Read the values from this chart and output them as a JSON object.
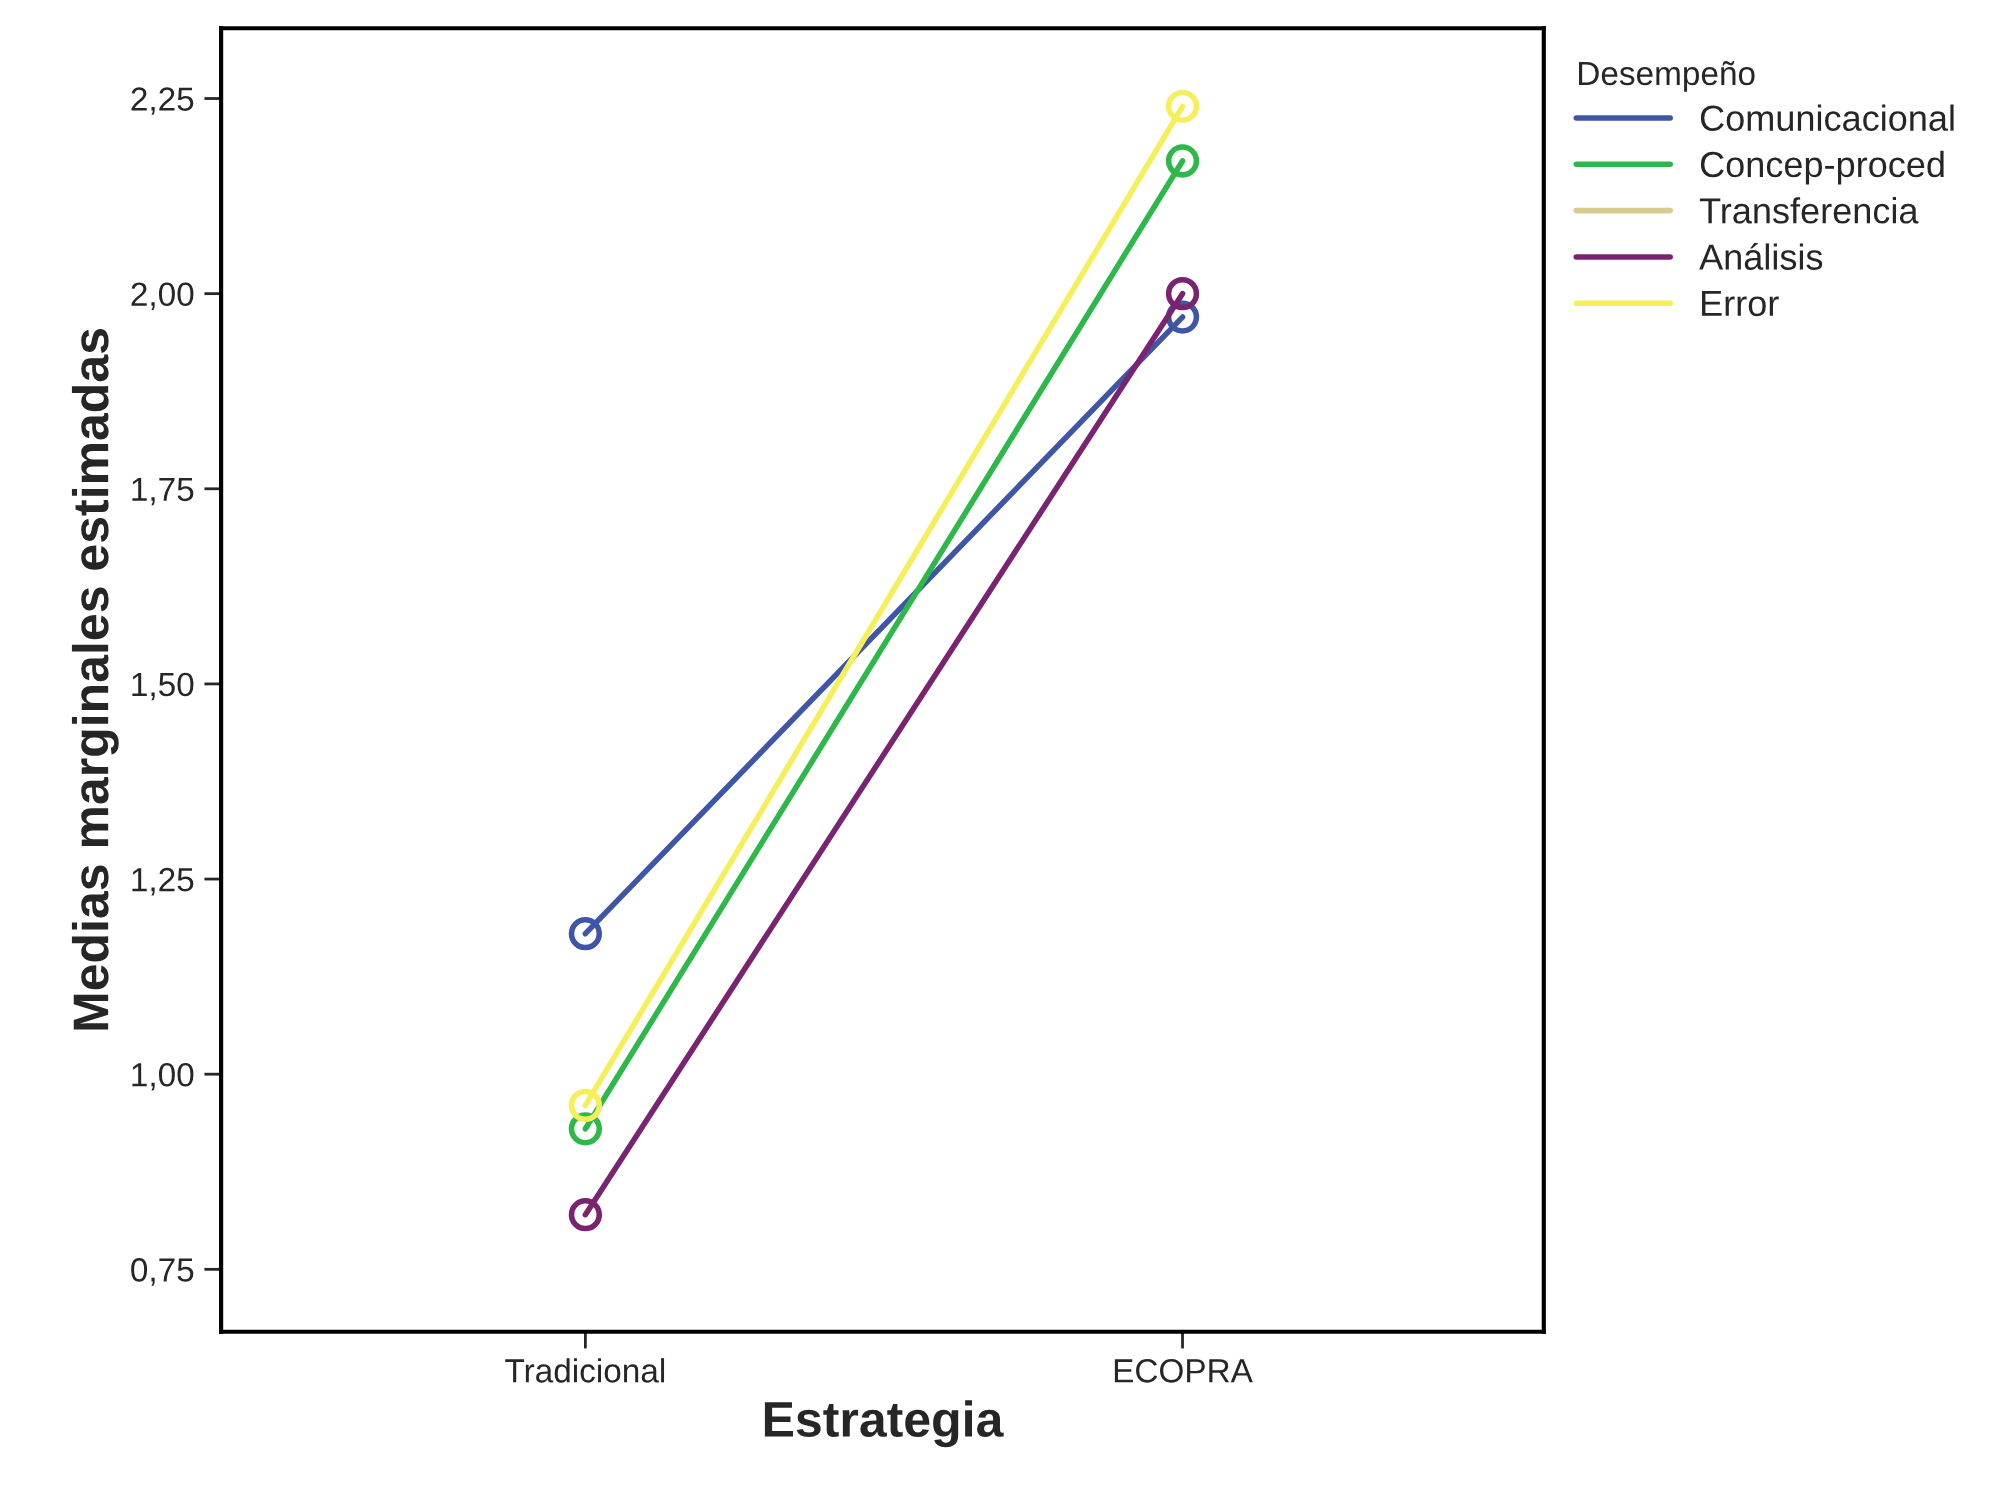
{
  "chart_data": {
    "type": "line",
    "xlabel": "Estrategia",
    "ylabel": "Medias marginales estimadas",
    "legend_title": "Desempeño",
    "categories": [
      "Tradicional",
      "ECOPRA"
    ],
    "series": [
      {
        "name": "Comunicacional",
        "color": "#3f55a8",
        "values": [
          1.18,
          1.97
        ]
      },
      {
        "name": "Concep-proced",
        "color": "#2db84a",
        "values": [
          0.93,
          2.17
        ]
      },
      {
        "name": "Transferencia",
        "color": "#d6cc8e",
        "values": [
          null,
          null
        ]
      },
      {
        "name": "Análisis",
        "color": "#7a2370",
        "values": [
          0.82,
          2.0
        ]
      },
      {
        "name": "Error",
        "color": "#f5f05a",
        "values": [
          0.96,
          2.24
        ]
      }
    ],
    "ylim": [
      0.67,
      2.34
    ],
    "yticks": [
      {
        "value": 0.75,
        "label": "0,75"
      },
      {
        "value": 1.0,
        "label": "1,00"
      },
      {
        "value": 1.25,
        "label": "1,25"
      },
      {
        "value": 1.5,
        "label": "1,50"
      },
      {
        "value": 1.75,
        "label": "1,75"
      },
      {
        "value": 2.0,
        "label": "2,00"
      },
      {
        "value": 2.25,
        "label": "2,25"
      }
    ],
    "marker": "circle",
    "line_style": "solid",
    "legend": "top right",
    "grid": false
  }
}
